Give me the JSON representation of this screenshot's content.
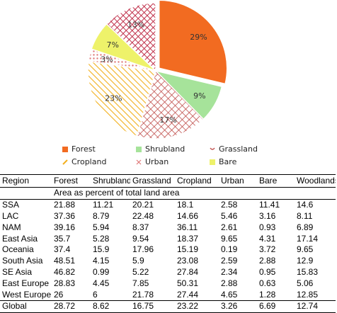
{
  "chart_data": [
    {
      "type": "pie",
      "slices": [
        {
          "label": "Forest",
          "value": 29,
          "label_text": "29%",
          "color": "#f26b21",
          "pattern": "solid"
        },
        {
          "label": "Shrubland",
          "value": 9,
          "label_text": "9%",
          "color": "#a6e39a",
          "pattern": "solid"
        },
        {
          "label": "Grassland",
          "value": 17,
          "label_text": "17%",
          "color": "#c0504d",
          "pattern": "crosshatch"
        },
        {
          "label": "Cropland",
          "value": 23,
          "label_text": "23%",
          "color": "#f2b01e",
          "pattern": "diagonal"
        },
        {
          "label": "Urban",
          "value": 3,
          "label_text": "3%",
          "color": "#e07b7b",
          "pattern": "dots"
        },
        {
          "label": "Bare",
          "value": 7,
          "label_text": "7%",
          "color": "#eef26a",
          "pattern": "solid"
        },
        {
          "label": "",
          "value": 13,
          "label_text": "13%",
          "color": "#c0304a",
          "pattern": "crosshatch"
        }
      ],
      "legend": [
        "Forest",
        "Shrubland",
        "Grassland",
        "Cropland",
        "Urban",
        "Bare"
      ],
      "legend_position": "bottom"
    },
    {
      "type": "table",
      "columns": [
        "Region",
        "Forest",
        "Shrubland",
        "Grassland",
        "Cropland",
        "Urban",
        "Bare",
        "Woodlands"
      ],
      "subheader": "Area as percent of total land area",
      "rows": [
        [
          "SSA",
          "21.88",
          "11.21",
          "20.21",
          "18.1",
          "2.58",
          "11.41",
          "14.6"
        ],
        [
          "LAC",
          "37.36",
          "8.79",
          "22.48",
          "14.66",
          "5.46",
          "3.16",
          "8.11"
        ],
        [
          "NAM",
          "39.16",
          "5.94",
          "8.37",
          "36.11",
          "2.61",
          "0.93",
          "6.89"
        ],
        [
          "East Asia",
          "35.7",
          "5.28",
          "9.54",
          "18.37",
          "9.65",
          "4.31",
          "17.14"
        ],
        [
          "Oceania",
          "37.4",
          "15.9",
          "17.96",
          "15.19",
          "0.19",
          "3.72",
          "9.65"
        ],
        [
          "South Asia",
          "48.51",
          "4.15",
          "5.9",
          "23.08",
          "2.59",
          "2.88",
          "12.9"
        ],
        [
          "SE Asia",
          "46.82",
          "0.99",
          "5.22",
          "27.84",
          "2.34",
          "0.95",
          "15.83"
        ],
        [
          "East Europe",
          "28.83",
          "4.45",
          "7.85",
          "50.31",
          "2.88",
          "0.63",
          "5.06"
        ],
        [
          "West Europe",
          "26",
          "6",
          "21.78",
          "27.44",
          "4.65",
          "1.28",
          "12.85"
        ]
      ],
      "total_row": [
        "Global",
        "28.72",
        "8.62",
        "16.75",
        "23.22",
        "3.26",
        "6.69",
        "12.74"
      ]
    }
  ]
}
